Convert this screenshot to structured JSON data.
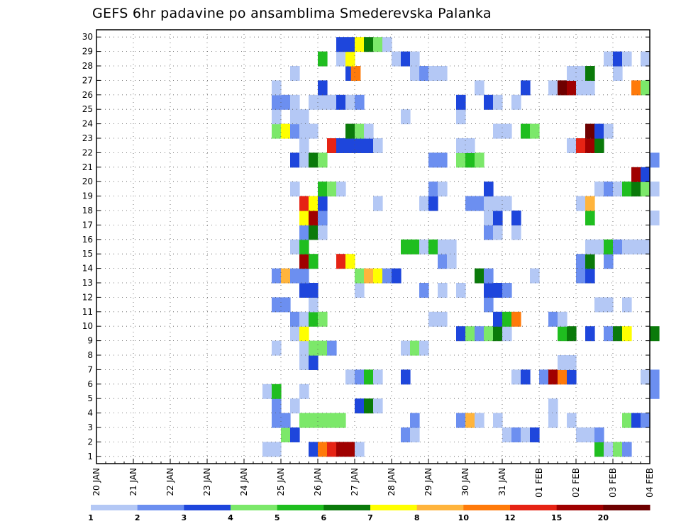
{
  "chart_data": {
    "type": "heatmap",
    "title": "GEFS 6hr padavine po ansamblima Smederevska Palanka",
    "y_ticks": [
      "1",
      "2",
      "3",
      "4",
      "5",
      "6",
      "7",
      "8",
      "9",
      "10",
      "11",
      "12",
      "13",
      "14",
      "15",
      "16",
      "17",
      "18",
      "19",
      "20",
      "21",
      "22",
      "23",
      "24",
      "25",
      "26",
      "27",
      "28",
      "29",
      "30"
    ],
    "x_ticks": [
      "20 JAN",
      "21 JAN",
      "22 JAN",
      "23 JAN",
      "24 JAN",
      "25 JAN",
      "26 JAN",
      "27 JAN",
      "28 JAN",
      "29 JAN",
      "30 JAN",
      "31 JAN",
      "01 FEB",
      "02 FEB",
      "03 FEB",
      "04 FEB"
    ],
    "x_range_days": [
      0,
      15
    ],
    "y_range": [
      0,
      30
    ],
    "grid": true,
    "colorbar": {
      "labels": [
        "1",
        "2",
        "3",
        "4",
        "5",
        "6",
        "7",
        "8",
        "10",
        "12",
        "15",
        "20"
      ],
      "colors": [
        "#b4c8f5",
        "#6c8ff0",
        "#1e46dc",
        "#7ce86a",
        "#1fbe1f",
        "#0a7a0a",
        "#ffff00",
        "#ffb43c",
        "#ff7a0a",
        "#e62314",
        "#a00000",
        "#6e0000"
      ]
    },
    "cells": [
      [
        24.5,
        1,
        1
      ],
      [
        24.75,
        1,
        1
      ],
      [
        25.75,
        1,
        3
      ],
      [
        26,
        1,
        9
      ],
      [
        26.25,
        1,
        10
      ],
      [
        26.5,
        1,
        11
      ],
      [
        26.75,
        1,
        11
      ],
      [
        27,
        1,
        1
      ],
      [
        33.5,
        1,
        5
      ],
      [
        33.75,
        1,
        1
      ],
      [
        34,
        1,
        4
      ],
      [
        34.25,
        1,
        2
      ],
      [
        25,
        2,
        4
      ],
      [
        25.25,
        2,
        3
      ],
      [
        28.25,
        2,
        2
      ],
      [
        28.5,
        2,
        1
      ],
      [
        31,
        2,
        1
      ],
      [
        31.25,
        2,
        2
      ],
      [
        31.5,
        2,
        1
      ],
      [
        31.75,
        2,
        3
      ],
      [
        33,
        2,
        1
      ],
      [
        33.25,
        2,
        1
      ],
      [
        33.5,
        2,
        2
      ],
      [
        24.75,
        3,
        2
      ],
      [
        25,
        3,
        2
      ],
      [
        25.5,
        3,
        4
      ],
      [
        25.75,
        3,
        4
      ],
      [
        26,
        3,
        4
      ],
      [
        26.25,
        3,
        4
      ],
      [
        26.5,
        3,
        4
      ],
      [
        28.5,
        3,
        2
      ],
      [
        29.75,
        3,
        2
      ],
      [
        30,
        3,
        8
      ],
      [
        30.25,
        3,
        1
      ],
      [
        30.75,
        3,
        1
      ],
      [
        32.25,
        3,
        1
      ],
      [
        32.75,
        3,
        1
      ],
      [
        34.25,
        3,
        4
      ],
      [
        34.5,
        3,
        3
      ],
      [
        34.75,
        3,
        2
      ],
      [
        24.75,
        4,
        2
      ],
      [
        25.25,
        4,
        1
      ],
      [
        27,
        4,
        3
      ],
      [
        27.25,
        4,
        6
      ],
      [
        27.5,
        4,
        1
      ],
      [
        32.25,
        4,
        1
      ],
      [
        24.5,
        5,
        1
      ],
      [
        24.75,
        5,
        5
      ],
      [
        25.5,
        5,
        1
      ],
      [
        35,
        5,
        2
      ],
      [
        26.75,
        6,
        1
      ],
      [
        27,
        6,
        2
      ],
      [
        27.25,
        6,
        5
      ],
      [
        27.5,
        6,
        1
      ],
      [
        28.25,
        6,
        3
      ],
      [
        31.25,
        6,
        1
      ],
      [
        31.5,
        6,
        3
      ],
      [
        32,
        6,
        2
      ],
      [
        32.25,
        6,
        11
      ],
      [
        32.5,
        6,
        9
      ],
      [
        32.75,
        6,
        3
      ],
      [
        34.75,
        6,
        1
      ],
      [
        35,
        6,
        2
      ],
      [
        25.5,
        7,
        1
      ],
      [
        25.75,
        7,
        3
      ],
      [
        32.5,
        7,
        1
      ],
      [
        32.75,
        7,
        1
      ],
      [
        24.75,
        8,
        1
      ],
      [
        25.5,
        8,
        1
      ],
      [
        25.75,
        8,
        4
      ],
      [
        26,
        8,
        4
      ],
      [
        26.25,
        8,
        2
      ],
      [
        28.25,
        8,
        1
      ],
      [
        28.5,
        8,
        4
      ],
      [
        28.75,
        8,
        1
      ],
      [
        25.25,
        9,
        1
      ],
      [
        25.5,
        9,
        7
      ],
      [
        29.75,
        9,
        3
      ],
      [
        30,
        9,
        4
      ],
      [
        30.25,
        9,
        2
      ],
      [
        30.5,
        9,
        4
      ],
      [
        30.75,
        9,
        6
      ],
      [
        31,
        9,
        1
      ],
      [
        32.5,
        9,
        5
      ],
      [
        32.75,
        9,
        6
      ],
      [
        33.25,
        9,
        3
      ],
      [
        33.75,
        9,
        2
      ],
      [
        34,
        9,
        6
      ],
      [
        34.25,
        9,
        7
      ],
      [
        35,
        9,
        6
      ],
      [
        25.25,
        10,
        2
      ],
      [
        25.5,
        10,
        1
      ],
      [
        25.75,
        10,
        5
      ],
      [
        26,
        10,
        4
      ],
      [
        29,
        10,
        1
      ],
      [
        29.25,
        10,
        1
      ],
      [
        30.75,
        10,
        3
      ],
      [
        31,
        10,
        5
      ],
      [
        31.25,
        10,
        9
      ],
      [
        32.25,
        10,
        2
      ],
      [
        32.5,
        10,
        1
      ],
      [
        24.75,
        11,
        2
      ],
      [
        25,
        11,
        2
      ],
      [
        25.75,
        11,
        1
      ],
      [
        30.5,
        11,
        2
      ],
      [
        33.5,
        11,
        1
      ],
      [
        33.75,
        11,
        1
      ],
      [
        34.25,
        11,
        1
      ],
      [
        25.5,
        12,
        3
      ],
      [
        25.75,
        12,
        3
      ],
      [
        27,
        12,
        1
      ],
      [
        28.75,
        12,
        2
      ],
      [
        29.25,
        12,
        1
      ],
      [
        29.75,
        12,
        1
      ],
      [
        30.5,
        12,
        3
      ],
      [
        30.75,
        12,
        3
      ],
      [
        31,
        12,
        2
      ],
      [
        24.75,
        13,
        2
      ],
      [
        25,
        13,
        8
      ],
      [
        25.25,
        13,
        2
      ],
      [
        25.5,
        13,
        2
      ],
      [
        27,
        13,
        4
      ],
      [
        27.25,
        13,
        8
      ],
      [
        27.5,
        13,
        7
      ],
      [
        27.75,
        13,
        2
      ],
      [
        28,
        13,
        3
      ],
      [
        30.25,
        13,
        6
      ],
      [
        30.5,
        13,
        2
      ],
      [
        31.75,
        13,
        1
      ],
      [
        33,
        13,
        2
      ],
      [
        33.25,
        13,
        3
      ],
      [
        25.5,
        14,
        11
      ],
      [
        25.75,
        14,
        5
      ],
      [
        26.5,
        14,
        10
      ],
      [
        26.75,
        14,
        7
      ],
      [
        29.25,
        14,
        2
      ],
      [
        29.5,
        14,
        1
      ],
      [
        33,
        14,
        2
      ],
      [
        33.25,
        14,
        6
      ],
      [
        33.75,
        14,
        2
      ],
      [
        25.25,
        15,
        1
      ],
      [
        25.5,
        15,
        5
      ],
      [
        28.25,
        15,
        5
      ],
      [
        28.5,
        15,
        5
      ],
      [
        28.75,
        15,
        1
      ],
      [
        29,
        15,
        5
      ],
      [
        29.25,
        15,
        1
      ],
      [
        29.5,
        15,
        1
      ],
      [
        33.25,
        15,
        1
      ],
      [
        33.5,
        15,
        1
      ],
      [
        33.75,
        15,
        5
      ],
      [
        34,
        15,
        2
      ],
      [
        34.25,
        15,
        1
      ],
      [
        34.5,
        15,
        1
      ],
      [
        34.75,
        15,
        1
      ],
      [
        25.5,
        16,
        2
      ],
      [
        25.75,
        16,
        6
      ],
      [
        26,
        16,
        1
      ],
      [
        30.5,
        16,
        2
      ],
      [
        30.75,
        16,
        1
      ],
      [
        31.25,
        16,
        1
      ],
      [
        25.5,
        17,
        7
      ],
      [
        25.75,
        17,
        11
      ],
      [
        26,
        17,
        2
      ],
      [
        30.5,
        17,
        1
      ],
      [
        30.75,
        17,
        3
      ],
      [
        31.25,
        17,
        3
      ],
      [
        33.25,
        17,
        5
      ],
      [
        35,
        17,
        1
      ],
      [
        25.5,
        18,
        10
      ],
      [
        25.75,
        18,
        7
      ],
      [
        26,
        18,
        3
      ],
      [
        27.5,
        18,
        1
      ],
      [
        28.75,
        18,
        1
      ],
      [
        29,
        18,
        3
      ],
      [
        30,
        18,
        2
      ],
      [
        30.25,
        18,
        2
      ],
      [
        30.5,
        18,
        1
      ],
      [
        30.75,
        18,
        1
      ],
      [
        31,
        18,
        1
      ],
      [
        33,
        18,
        1
      ],
      [
        33.25,
        18,
        8
      ],
      [
        25.25,
        19,
        1
      ],
      [
        26,
        19,
        5
      ],
      [
        26.25,
        19,
        4
      ],
      [
        26.5,
        19,
        1
      ],
      [
        29,
        19,
        2
      ],
      [
        29.25,
        19,
        1
      ],
      [
        30.5,
        19,
        3
      ],
      [
        33.5,
        19,
        1
      ],
      [
        33.75,
        19,
        2
      ],
      [
        34,
        19,
        1
      ],
      [
        34.25,
        19,
        5
      ],
      [
        34.5,
        19,
        6
      ],
      [
        34.75,
        19,
        4
      ],
      [
        35,
        19,
        1
      ],
      [
        34.5,
        20,
        11
      ],
      [
        34.75,
        20,
        3
      ],
      [
        25.25,
        21,
        3
      ],
      [
        25.5,
        21,
        1
      ],
      [
        25.75,
        21,
        6
      ],
      [
        26,
        21,
        4
      ],
      [
        29,
        21,
        2
      ],
      [
        29.25,
        21,
        2
      ],
      [
        29.75,
        21,
        4
      ],
      [
        30,
        21,
        5
      ],
      [
        30.25,
        21,
        4
      ],
      [
        35,
        21,
        2
      ],
      [
        25.5,
        22,
        1
      ],
      [
        26.25,
        22,
        10
      ],
      [
        26.5,
        22,
        3
      ],
      [
        26.75,
        22,
        3
      ],
      [
        27,
        22,
        3
      ],
      [
        27.25,
        22,
        3
      ],
      [
        27.5,
        22,
        1
      ],
      [
        29.75,
        22,
        1
      ],
      [
        30,
        22,
        1
      ],
      [
        32.75,
        22,
        1
      ],
      [
        33,
        22,
        10
      ],
      [
        33.25,
        22,
        11
      ],
      [
        33.5,
        22,
        6
      ],
      [
        24.75,
        23,
        4
      ],
      [
        25,
        23,
        7
      ],
      [
        25.25,
        23,
        2
      ],
      [
        25.5,
        23,
        1
      ],
      [
        25.75,
        23,
        1
      ],
      [
        26.75,
        23,
        6
      ],
      [
        27,
        23,
        4
      ],
      [
        27.25,
        23,
        1
      ],
      [
        30.75,
        23,
        1
      ],
      [
        31,
        23,
        1
      ],
      [
        31.5,
        23,
        5
      ],
      [
        31.75,
        23,
        4
      ],
      [
        33.25,
        23,
        12
      ],
      [
        33.5,
        23,
        3
      ],
      [
        33.75,
        23,
        1
      ],
      [
        24.75,
        24,
        1
      ],
      [
        25.25,
        24,
        1
      ],
      [
        25.5,
        24,
        1
      ],
      [
        28.25,
        24,
        1
      ],
      [
        29.75,
        24,
        1
      ],
      [
        24.75,
        25,
        2
      ],
      [
        25,
        25,
        2
      ],
      [
        25.25,
        25,
        1
      ],
      [
        25.75,
        25,
        1
      ],
      [
        26,
        25,
        1
      ],
      [
        26.25,
        25,
        1
      ],
      [
        26.5,
        25,
        3
      ],
      [
        26.75,
        25,
        1
      ],
      [
        27,
        25,
        2
      ],
      [
        29.75,
        25,
        3
      ],
      [
        30.5,
        25,
        3
      ],
      [
        30.75,
        25,
        1
      ],
      [
        31.25,
        25,
        1
      ],
      [
        24.75,
        26,
        1
      ],
      [
        26,
        26,
        3
      ],
      [
        30.25,
        26,
        1
      ],
      [
        31.5,
        26,
        3
      ],
      [
        32.25,
        26,
        1
      ],
      [
        32.5,
        26,
        12
      ],
      [
        32.75,
        26,
        11
      ],
      [
        33,
        26,
        1
      ],
      [
        33.25,
        26,
        1
      ],
      [
        34.5,
        26,
        9
      ],
      [
        34.75,
        26,
        4
      ],
      [
        25.25,
        27,
        1
      ],
      [
        26.75,
        27,
        3
      ],
      [
        26.9,
        27,
        9
      ],
      [
        28.5,
        27,
        1
      ],
      [
        28.75,
        27,
        2
      ],
      [
        29,
        27,
        1
      ],
      [
        29.25,
        27,
        1
      ],
      [
        32.75,
        27,
        1
      ],
      [
        33,
        27,
        1
      ],
      [
        33.25,
        27,
        6
      ],
      [
        34,
        27,
        1
      ],
      [
        26,
        28,
        5
      ],
      [
        26.5,
        28,
        1
      ],
      [
        26.75,
        28,
        7
      ],
      [
        28,
        28,
        1
      ],
      [
        28.25,
        28,
        3
      ],
      [
        28.5,
        28,
        1
      ],
      [
        33.75,
        28,
        1
      ],
      [
        34,
        28,
        3
      ],
      [
        34.25,
        28,
        1
      ],
      [
        34.75,
        28,
        1
      ],
      [
        26.5,
        29,
        3
      ],
      [
        26.75,
        29,
        3
      ],
      [
        27,
        29,
        7
      ],
      [
        27.25,
        29,
        6
      ],
      [
        27.5,
        29,
        4
      ],
      [
        27.75,
        29,
        1
      ]
    ]
  }
}
